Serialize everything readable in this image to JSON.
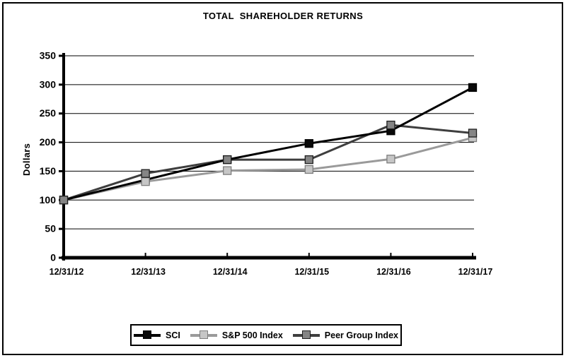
{
  "chart_data": {
    "type": "line",
    "title": "TOTAL  SHAREHOLDER RETURNS",
    "ylabel": "Dollars",
    "xlabel": "",
    "ylim": [
      0,
      350
    ],
    "ytick_step": 50,
    "grid": true,
    "legend_position": "bottom",
    "categories": [
      "12/31/12",
      "12/31/13",
      "12/31/14",
      "12/31/15",
      "12/31/16",
      "12/31/17"
    ],
    "series": [
      {
        "name": "SCI",
        "values": [
          100,
          135,
          170,
          198,
          220,
          295
        ],
        "line_color": "#000000",
        "marker_fill": "#0a0a0a",
        "marker_border": "#000000"
      },
      {
        "name": "S&P 500 Index",
        "values": [
          100,
          132,
          151,
          153,
          171,
          208
        ],
        "line_color": "#9a9a9a",
        "marker_fill": "#c6c6c6",
        "marker_border": "#7e7e7e"
      },
      {
        "name": "Peer Group Index",
        "values": [
          100,
          146,
          170,
          170,
          230,
          216
        ],
        "line_color": "#3e3e3e",
        "marker_fill": "#858585",
        "marker_border": "#1f1f1f"
      }
    ]
  }
}
